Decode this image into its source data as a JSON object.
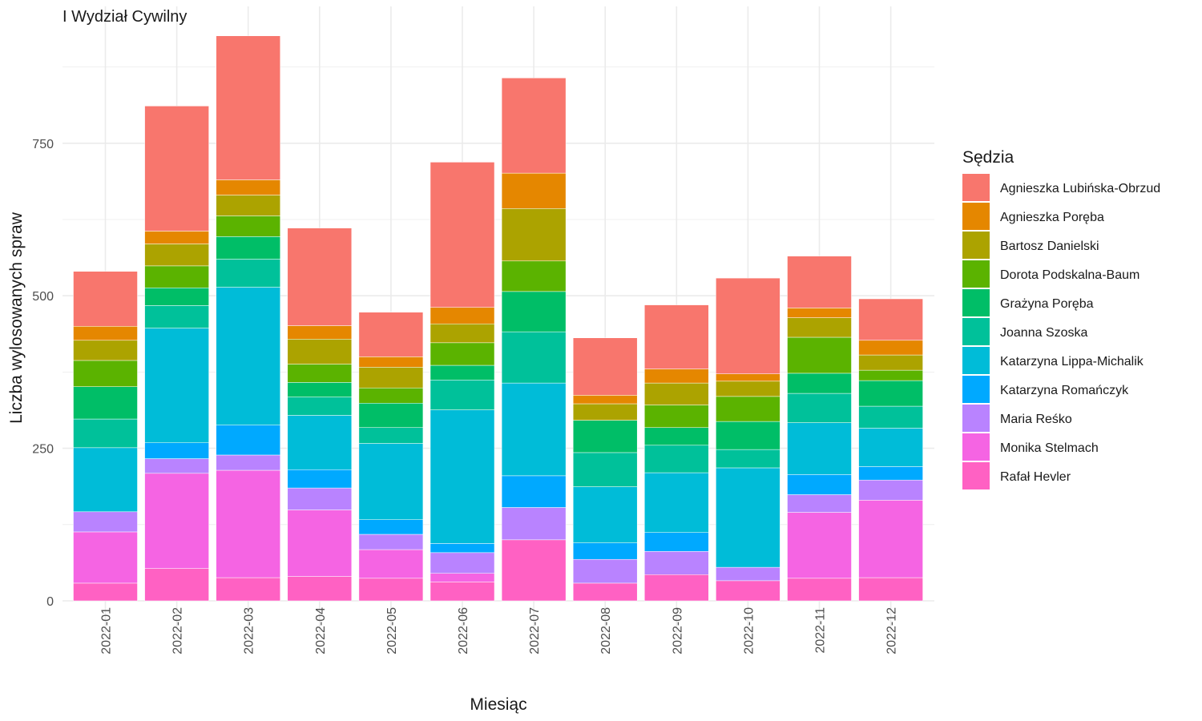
{
  "chart_data": {
    "type": "bar",
    "stacked": true,
    "title": "I Wydział Cywilny",
    "xlabel": "Miesiąc",
    "ylabel": "Liczba wylosowanych spraw",
    "ylim": [
      0,
      960
    ],
    "yticks": [
      0,
      250,
      500,
      750
    ],
    "grid": true,
    "legend": {
      "title": "Sędzia",
      "position": "right"
    },
    "categories": [
      "2022-01",
      "2022-02",
      "2022-03",
      "2022-04",
      "2022-05",
      "2022-06",
      "2022-07",
      "2022-08",
      "2022-09",
      "2022-10",
      "2022-11",
      "2022-12"
    ],
    "series": [
      {
        "name": "Rafał Hevler",
        "color": "#FF61C3",
        "values": [
          29,
          53,
          38,
          40,
          37,
          31,
          100,
          29,
          43,
          33,
          37,
          38
        ]
      },
      {
        "name": "Monika Stelmach",
        "color": "#F564E3",
        "values": [
          84,
          156,
          176,
          109,
          47,
          14,
          0,
          0,
          0,
          0,
          108,
          127
        ]
      },
      {
        "name": "Maria Reśko",
        "color": "#B983FF",
        "values": [
          33,
          24,
          25,
          36,
          25,
          34,
          53,
          39,
          38,
          22,
          29,
          33
        ]
      },
      {
        "name": "Katarzyna Romańczyk",
        "color": "#00A9FF",
        "values": [
          0,
          26,
          49,
          30,
          24,
          15,
          52,
          27,
          31,
          0,
          33,
          22
        ]
      },
      {
        "name": "Katarzyna Lippa-Michalik",
        "color": "#00BCD8",
        "values": [
          105,
          188,
          226,
          89,
          125,
          219,
          152,
          92,
          98,
          163,
          85,
          63
        ]
      },
      {
        "name": "Joanna Szoska",
        "color": "#00C19A",
        "values": [
          47,
          37,
          46,
          30,
          26,
          49,
          84,
          56,
          45,
          30,
          48,
          36
        ]
      },
      {
        "name": "Grażyna Poręba",
        "color": "#00BE67",
        "values": [
          53,
          29,
          37,
          24,
          40,
          24,
          66,
          53,
          29,
          46,
          33,
          42
        ]
      },
      {
        "name": "Dorota Podskalna-Baum",
        "color": "#5BB300",
        "values": [
          43,
          36,
          34,
          30,
          25,
          37,
          50,
          0,
          37,
          41,
          59,
          17
        ]
      },
      {
        "name": "Bartosz Danielski",
        "color": "#ACA300",
        "values": [
          33,
          36,
          34,
          41,
          34,
          31,
          86,
          27,
          36,
          25,
          32,
          25
        ]
      },
      {
        "name": "Agnieszka Poręba",
        "color": "#E58700",
        "values": [
          23,
          21,
          25,
          22,
          17,
          27,
          58,
          14,
          23,
          12,
          16,
          24
        ]
      },
      {
        "name": "Agnieszka Lubińska-Obrzud",
        "color": "#F8766D",
        "values": [
          90,
          205,
          236,
          160,
          73,
          238,
          156,
          94,
          105,
          157,
          85,
          68
        ]
      }
    ]
  }
}
